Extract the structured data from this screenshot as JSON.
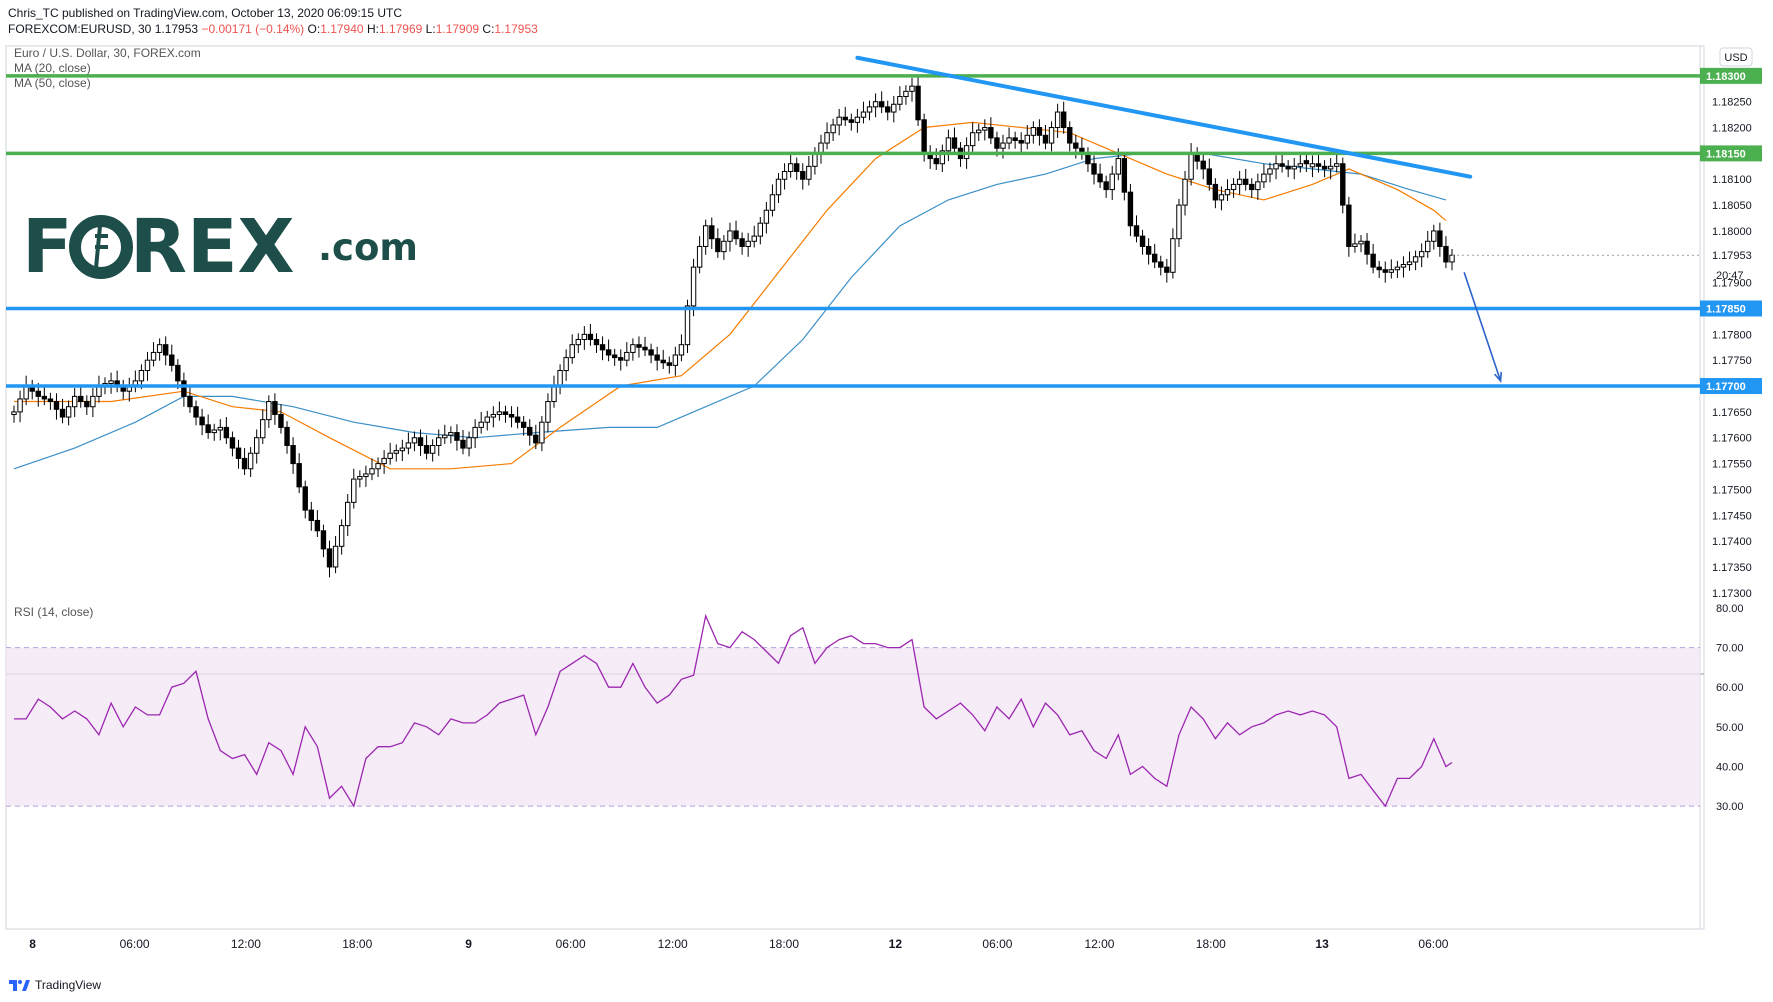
{
  "header": {
    "line1": "Chris_TC published on TradingView.com, October 13, 2020 06:09:15 UTC",
    "symbol": "FOREXCOM:EURUSD, 30",
    "last": "1.17953",
    "change": "−0.00171 (−0.14%)",
    "o_label": "O:",
    "o": "1.17940",
    "h_label": "H:",
    "h": "1.17969",
    "l_label": "L:",
    "l": "1.17909",
    "c_label": "C:",
    "c": "1.17953"
  },
  "legend": {
    "title": "Euro / U.S. Dollar, 30, FOREX.com",
    "ma20": "MA (20, close)",
    "ma50": "MA (50, close)",
    "rsi": "RSI (14, close)"
  },
  "logo": {
    "text1": "F",
    "text2": "REX",
    "suffix": ".com"
  },
  "currency_badge": "USD",
  "countdown": "20:47",
  "footer": {
    "brand": "TradingView"
  },
  "colors": {
    "up_candle": "#ffffff",
    "down_candle": "#000000",
    "ma20": "#f57c00",
    "ma50": "#3a8fc7",
    "support": "#2196f3",
    "resistance": "#4caf50",
    "trendline": "#2196f3",
    "rsi_line": "#9c27b0",
    "rsi_band": "#f3e5f5",
    "logo": "#1d4e4a"
  },
  "chart_data": [
    {
      "type": "candlestick",
      "title": "Euro / U.S. Dollar, 30, FOREX.com",
      "y_ticks": [
        "1.18300",
        "1.18250",
        "1.18200",
        "1.18150",
        "1.18100",
        "1.18050",
        "1.18000",
        "1.17953",
        "1.17900",
        "1.17850",
        "1.17800",
        "1.17750",
        "1.17700",
        "1.17650",
        "1.17600",
        "1.17550",
        "1.17500",
        "1.17450",
        "1.17400",
        "1.17350",
        "1.17300"
      ],
      "ylim": [
        1.1729,
        1.1835
      ],
      "x_ticks": [
        "8",
        "06:00",
        "12:00",
        "18:00",
        "9",
        "06:00",
        "12:00",
        "18:00",
        "12",
        "06:00",
        "12:00",
        "18:00",
        "13",
        "06:00"
      ],
      "horizontal_levels": [
        {
          "label": "1.18300",
          "value": 1.183,
          "kind": "resistance"
        },
        {
          "label": "1.18150",
          "value": 1.1815,
          "kind": "resistance"
        },
        {
          "label": "1.17850",
          "value": 1.1785,
          "kind": "support"
        },
        {
          "label": "1.17700",
          "value": 1.177,
          "kind": "support"
        }
      ],
      "last_price": 1.17953,
      "close_path": [
        [
          0,
          1.1765
        ],
        [
          2,
          1.177
        ],
        [
          4,
          1.1768
        ],
        [
          6,
          1.1767
        ],
        [
          8,
          1.1764
        ],
        [
          10,
          1.1768
        ],
        [
          12,
          1.1766
        ],
        [
          14,
          1.177
        ],
        [
          16,
          1.1771
        ],
        [
          18,
          1.1769
        ],
        [
          20,
          1.1771
        ],
        [
          22,
          1.1775
        ],
        [
          24,
          1.1778
        ],
        [
          26,
          1.1774
        ],
        [
          28,
          1.1768
        ],
        [
          30,
          1.1764
        ],
        [
          32,
          1.1761
        ],
        [
          34,
          1.1762
        ],
        [
          36,
          1.1758
        ],
        [
          38,
          1.1754
        ],
        [
          40,
          1.176
        ],
        [
          42,
          1.1767
        ],
        [
          44,
          1.1762
        ],
        [
          46,
          1.1755
        ],
        [
          48,
          1.1746
        ],
        [
          50,
          1.1742
        ],
        [
          52,
          1.1735
        ],
        [
          54,
          1.1743
        ],
        [
          56,
          1.1752
        ],
        [
          58,
          1.1753
        ],
        [
          60,
          1.1755
        ],
        [
          62,
          1.1757
        ],
        [
          64,
          1.1758
        ],
        [
          66,
          1.176
        ],
        [
          68,
          1.1757
        ],
        [
          70,
          1.176
        ],
        [
          72,
          1.1761
        ],
        [
          74,
          1.1758
        ],
        [
          76,
          1.1762
        ],
        [
          78,
          1.1764
        ],
        [
          80,
          1.1765
        ],
        [
          82,
          1.1764
        ],
        [
          84,
          1.1762
        ],
        [
          86,
          1.1759
        ],
        [
          88,
          1.1767
        ],
        [
          90,
          1.1773
        ],
        [
          92,
          1.1778
        ],
        [
          94,
          1.178
        ],
        [
          96,
          1.1778
        ],
        [
          98,
          1.1776
        ],
        [
          100,
          1.1775
        ],
        [
          102,
          1.1778
        ],
        [
          104,
          1.1777
        ],
        [
          106,
          1.1775
        ],
        [
          108,
          1.1774
        ],
        [
          110,
          1.1778
        ],
        [
          112,
          1.1793
        ],
        [
          114,
          1.1801
        ],
        [
          116,
          1.1796
        ],
        [
          118,
          1.18
        ],
        [
          120,
          1.1797
        ],
        [
          122,
          1.1799
        ],
        [
          124,
          1.1804
        ],
        [
          126,
          1.181
        ],
        [
          128,
          1.1813
        ],
        [
          130,
          1.181
        ],
        [
          132,
          1.1815
        ],
        [
          134,
          1.1819
        ],
        [
          136,
          1.1822
        ],
        [
          138,
          1.1821
        ],
        [
          140,
          1.1823
        ],
        [
          142,
          1.1825
        ],
        [
          144,
          1.1823
        ],
        [
          146,
          1.1826
        ],
        [
          148,
          1.1828
        ],
        [
          150,
          1.1815
        ],
        [
          152,
          1.1813
        ],
        [
          154,
          1.1818
        ],
        [
          156,
          1.1814
        ],
        [
          158,
          1.1819
        ],
        [
          160,
          1.182
        ],
        [
          162,
          1.1816
        ],
        [
          164,
          1.1818
        ],
        [
          166,
          1.1817
        ],
        [
          168,
          1.182
        ],
        [
          170,
          1.1817
        ],
        [
          172,
          1.1823
        ],
        [
          174,
          1.1817
        ],
        [
          176,
          1.1815
        ],
        [
          178,
          1.1811
        ],
        [
          180,
          1.1808
        ],
        [
          182,
          1.1814
        ],
        [
          184,
          1.1801
        ],
        [
          186,
          1.1797
        ],
        [
          188,
          1.1794
        ],
        [
          190,
          1.1792
        ],
        [
          192,
          1.1805
        ],
        [
          194,
          1.1815
        ],
        [
          196,
          1.1812
        ],
        [
          198,
          1.1806
        ],
        [
          200,
          1.1808
        ],
        [
          202,
          1.181
        ],
        [
          204,
          1.1808
        ],
        [
          206,
          1.1811
        ],
        [
          208,
          1.1813
        ],
        [
          210,
          1.1812
        ],
        [
          212,
          1.1813
        ],
        [
          214,
          1.1813
        ],
        [
          216,
          1.1812
        ],
        [
          218,
          1.1813
        ],
        [
          220,
          1.1797
        ],
        [
          222,
          1.1798
        ],
        [
          224,
          1.1793
        ],
        [
          226,
          1.1792
        ],
        [
          228,
          1.1793
        ],
        [
          230,
          1.1794
        ],
        [
          232,
          1.1796
        ],
        [
          234,
          1.18
        ],
        [
          236,
          1.1794
        ],
        [
          237,
          1.17953
        ]
      ],
      "ma20_path": [
        [
          0,
          1.1767
        ],
        [
          16,
          1.1767
        ],
        [
          28,
          1.1769
        ],
        [
          36,
          1.1766
        ],
        [
          44,
          1.1765
        ],
        [
          52,
          1.176
        ],
        [
          62,
          1.1754
        ],
        [
          72,
          1.1754
        ],
        [
          82,
          1.1755
        ],
        [
          90,
          1.1762
        ],
        [
          100,
          1.177
        ],
        [
          110,
          1.1772
        ],
        [
          118,
          1.178
        ],
        [
          126,
          1.1792
        ],
        [
          134,
          1.1804
        ],
        [
          142,
          1.1814
        ],
        [
          150,
          1.182
        ],
        [
          158,
          1.1821
        ],
        [
          166,
          1.182
        ],
        [
          174,
          1.1819
        ],
        [
          182,
          1.1815
        ],
        [
          190,
          1.1811
        ],
        [
          198,
          1.1808
        ],
        [
          206,
          1.1806
        ],
        [
          214,
          1.1809
        ],
        [
          220,
          1.1812
        ],
        [
          228,
          1.1808
        ],
        [
          234,
          1.1804
        ],
        [
          236,
          1.1802
        ]
      ],
      "ma50_path": [
        [
          0,
          1.1754
        ],
        [
          10,
          1.1758
        ],
        [
          20,
          1.1763
        ],
        [
          28,
          1.1768
        ],
        [
          36,
          1.1768
        ],
        [
          46,
          1.1766
        ],
        [
          56,
          1.1763
        ],
        [
          66,
          1.1761
        ],
        [
          76,
          1.176
        ],
        [
          86,
          1.1761
        ],
        [
          98,
          1.1762
        ],
        [
          106,
          1.1762
        ],
        [
          114,
          1.1766
        ],
        [
          122,
          1.177
        ],
        [
          130,
          1.1779
        ],
        [
          138,
          1.1791
        ],
        [
          146,
          1.1801
        ],
        [
          154,
          1.1806
        ],
        [
          162,
          1.1809
        ],
        [
          170,
          1.1811
        ],
        [
          178,
          1.1814
        ],
        [
          186,
          1.1815
        ],
        [
          196,
          1.1815
        ],
        [
          206,
          1.1813
        ],
        [
          214,
          1.1812
        ],
        [
          222,
          1.1811
        ],
        [
          230,
          1.1808
        ],
        [
          236,
          1.1806
        ]
      ],
      "trendline": [
        [
          139,
          1.18335
        ],
        [
          240,
          1.18105
        ]
      ],
      "projection_arrow": [
        [
          239,
          1.1792
        ],
        [
          245,
          1.1771
        ]
      ]
    },
    {
      "type": "line",
      "title": "RSI (14, close)",
      "y_ticks": [
        "80.00",
        "70.00",
        "60.00",
        "50.00",
        "40.00",
        "30.00"
      ],
      "ylim": [
        27,
        82
      ],
      "band": [
        30,
        70
      ],
      "values_path": [
        [
          0,
          52
        ],
        [
          2,
          52
        ],
        [
          4,
          57
        ],
        [
          6,
          55
        ],
        [
          8,
          52
        ],
        [
          10,
          54
        ],
        [
          12,
          52
        ],
        [
          14,
          48
        ],
        [
          16,
          56
        ],
        [
          18,
          50
        ],
        [
          20,
          55
        ],
        [
          22,
          53
        ],
        [
          24,
          53
        ],
        [
          26,
          60
        ],
        [
          28,
          61
        ],
        [
          30,
          64
        ],
        [
          32,
          52
        ],
        [
          34,
          44
        ],
        [
          36,
          42
        ],
        [
          38,
          43
        ],
        [
          40,
          38
        ],
        [
          42,
          46
        ],
        [
          44,
          44
        ],
        [
          46,
          38
        ],
        [
          48,
          50
        ],
        [
          50,
          45
        ],
        [
          52,
          32
        ],
        [
          54,
          35
        ],
        [
          56,
          30
        ],
        [
          58,
          42
        ],
        [
          60,
          45
        ],
        [
          62,
          45
        ],
        [
          64,
          46
        ],
        [
          66,
          51
        ],
        [
          68,
          50
        ],
        [
          70,
          48
        ],
        [
          72,
          52
        ],
        [
          74,
          51
        ],
        [
          76,
          51
        ],
        [
          78,
          53
        ],
        [
          80,
          56
        ],
        [
          82,
          57
        ],
        [
          84,
          58
        ],
        [
          86,
          48
        ],
        [
          88,
          55
        ],
        [
          90,
          64
        ],
        [
          92,
          66
        ],
        [
          94,
          68
        ],
        [
          96,
          66
        ],
        [
          98,
          60
        ],
        [
          100,
          60
        ],
        [
          102,
          66
        ],
        [
          104,
          60
        ],
        [
          106,
          56
        ],
        [
          108,
          58
        ],
        [
          110,
          62
        ],
        [
          112,
          63
        ],
        [
          114,
          78
        ],
        [
          116,
          71
        ],
        [
          118,
          70
        ],
        [
          120,
          74
        ],
        [
          122,
          72
        ],
        [
          124,
          69
        ],
        [
          126,
          66
        ],
        [
          128,
          73
        ],
        [
          130,
          75
        ],
        [
          132,
          66
        ],
        [
          134,
          70
        ],
        [
          136,
          72
        ],
        [
          138,
          73
        ],
        [
          140,
          71
        ],
        [
          142,
          71
        ],
        [
          144,
          70
        ],
        [
          146,
          70
        ],
        [
          148,
          72
        ],
        [
          150,
          55
        ],
        [
          152,
          52
        ],
        [
          154,
          54
        ],
        [
          156,
          56
        ],
        [
          158,
          53
        ],
        [
          160,
          49
        ],
        [
          162,
          55
        ],
        [
          164,
          52
        ],
        [
          166,
          57
        ],
        [
          168,
          50
        ],
        [
          170,
          56
        ],
        [
          172,
          53
        ],
        [
          174,
          48
        ],
        [
          176,
          49
        ],
        [
          178,
          44
        ],
        [
          180,
          42
        ],
        [
          182,
          48
        ],
        [
          184,
          38
        ],
        [
          186,
          40
        ],
        [
          188,
          37
        ],
        [
          190,
          35
        ],
        [
          192,
          48
        ],
        [
          194,
          55
        ],
        [
          196,
          52
        ],
        [
          198,
          47
        ],
        [
          200,
          51
        ],
        [
          202,
          48
        ],
        [
          204,
          50
        ],
        [
          206,
          51
        ],
        [
          208,
          53
        ],
        [
          210,
          54
        ],
        [
          212,
          53
        ],
        [
          214,
          54
        ],
        [
          216,
          53
        ],
        [
          218,
          50
        ],
        [
          220,
          37
        ],
        [
          222,
          38
        ],
        [
          224,
          34
        ],
        [
          226,
          30
        ],
        [
          228,
          37
        ],
        [
          230,
          37
        ],
        [
          232,
          40
        ],
        [
          234,
          47
        ],
        [
          236,
          40
        ],
        [
          237,
          41
        ]
      ]
    }
  ]
}
